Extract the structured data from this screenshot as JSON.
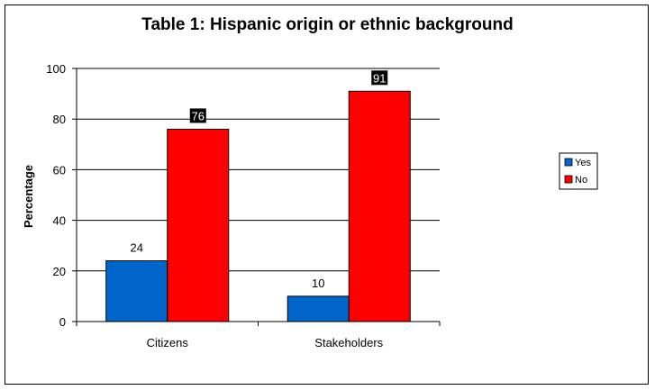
{
  "chart_data": {
    "type": "bar",
    "title": "Table 1: Hispanic origin or ethnic background",
    "xlabel": "",
    "ylabel": "Percentage",
    "ylim": [
      0,
      100
    ],
    "yticks": [
      0,
      20,
      40,
      60,
      80,
      100
    ],
    "categories": [
      "Citizens",
      "Stakeholders"
    ],
    "series": [
      {
        "name": "Yes",
        "values": [
          24,
          10
        ],
        "color": "#0066CC",
        "data_labels": [
          "24",
          "10"
        ]
      },
      {
        "name": "No",
        "values": [
          76,
          91
        ],
        "color": "#FF0000",
        "data_labels": [
          "76",
          "91"
        ]
      }
    ],
    "grid": true,
    "legend": "right",
    "label_styles": {
      "No": "white-on-black"
    }
  }
}
